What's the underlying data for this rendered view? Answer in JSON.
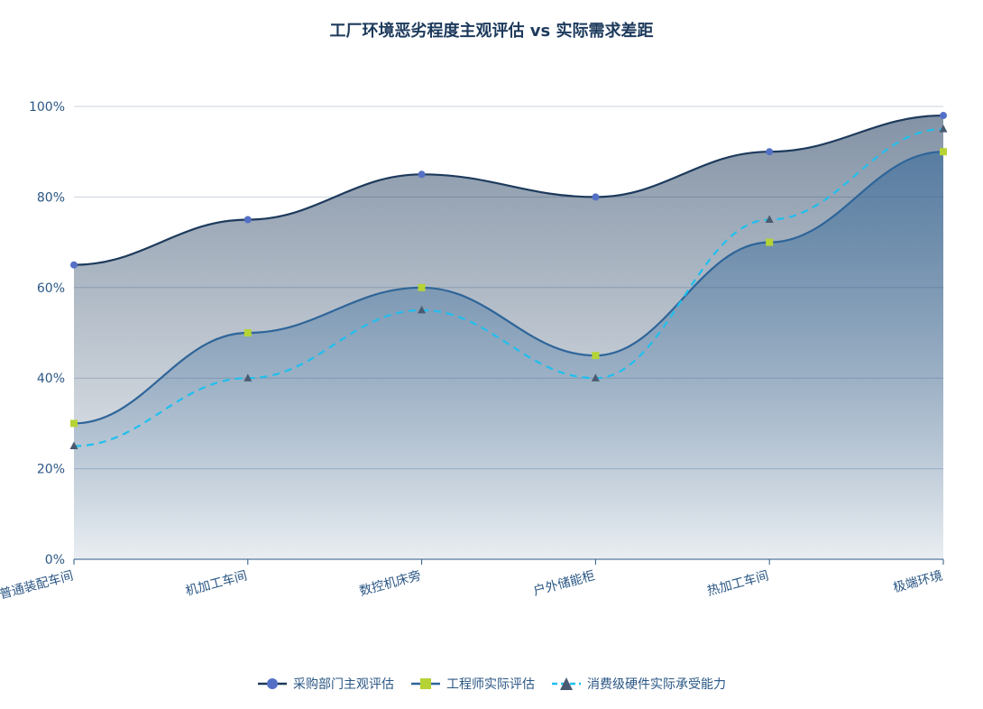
{
  "chart_data": {
    "type": "line",
    "title": "工厂环境恶劣程度主观评估 vs 实际需求差距",
    "categories": [
      "普通装配车间",
      "机加工车间",
      "数控机床旁",
      "户外储能柜",
      "热加工车间",
      "极端环境"
    ],
    "ylim": [
      0,
      100
    ],
    "y_ticks": [
      "0%",
      "20%",
      "40%",
      "60%",
      "80%",
      "100%"
    ],
    "grid": true,
    "legend_position": "bottom",
    "series": [
      {
        "name": "采购部门主观评估",
        "values": [
          65,
          75,
          85,
          80,
          90,
          98
        ],
        "color": "#1d3a5c",
        "marker_color": "#5470c6",
        "marker": "circle",
        "style": "solid",
        "area": true
      },
      {
        "name": "工程师实际评估",
        "values": [
          30,
          50,
          60,
          45,
          70,
          90
        ],
        "color": "#2e6599",
        "marker_color": "#b5d335",
        "marker": "square",
        "style": "solid",
        "area": true
      },
      {
        "name": "消费级硬件实际承受能力",
        "values": [
          25,
          40,
          55,
          40,
          75,
          95
        ],
        "color": "#1fbfee",
        "marker_color": "#4a5a70",
        "marker": "triangle",
        "style": "dashed",
        "area": false
      }
    ]
  }
}
